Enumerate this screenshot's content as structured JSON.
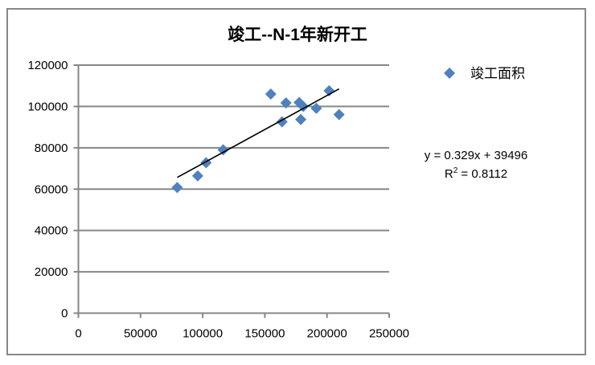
{
  "chart_data": {
    "type": "scatter",
    "title": "竣工--N-1年新开工",
    "xlabel": "",
    "ylabel": "",
    "xlim": [
      0,
      250000
    ],
    "ylim": [
      0,
      120000
    ],
    "x_ticks": [
      0,
      50000,
      100000,
      150000,
      200000,
      250000
    ],
    "y_ticks": [
      0,
      20000,
      40000,
      60000,
      80000,
      100000,
      120000
    ],
    "x_tick_labels": [
      "0",
      "50000",
      "100000",
      "150000",
      "200000",
      "250000"
    ],
    "y_tick_labels": [
      "0",
      "20000",
      "40000",
      "60000",
      "80000",
      "100000",
      "120000"
    ],
    "grid": {
      "horizontal": true,
      "vertical": false
    },
    "legend_position": "right",
    "series": [
      {
        "name": "竣工面积",
        "color": "#4F81BD",
        "marker": "diamond",
        "x": [
          79500,
          96000,
          102700,
          116500,
          154800,
          163800,
          167000,
          177600,
          180900,
          178900,
          191400,
          201700,
          209700
        ],
        "y": [
          60800,
          66400,
          72800,
          79000,
          106000,
          92600,
          101700,
          101900,
          100000,
          93700,
          99100,
          107600,
          96100
        ]
      }
    ],
    "trendline": {
      "type": "linear",
      "slope": 0.329,
      "intercept": 39496,
      "r_squared": 0.8112,
      "x_range": [
        79500,
        209700
      ],
      "color": "#000000",
      "equation_label": "y = 0.329x + 39496",
      "r2_label_prefix": "R",
      "r2_label_sup": "2",
      "r2_label_suffix": " = 0.8112"
    }
  },
  "colors": {
    "frame": "#878787",
    "axis": "#878787",
    "grid": "#878787",
    "marker": "#4F81BD"
  }
}
